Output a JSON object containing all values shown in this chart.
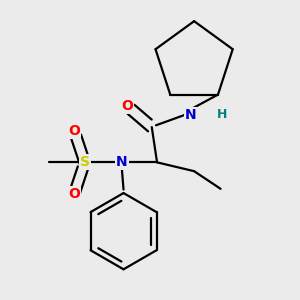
{
  "bg_color": "#ebebeb",
  "bond_color": "#000000",
  "atom_colors": {
    "O": "#ff0000",
    "N_amide": "#0000cc",
    "N_sulfonyl": "#0000cc",
    "H": "#008080",
    "S": "#cccc00",
    "C": "#000000"
  },
  "figsize": [
    3.0,
    3.0
  ],
  "dpi": 100,
  "lw": 1.6
}
